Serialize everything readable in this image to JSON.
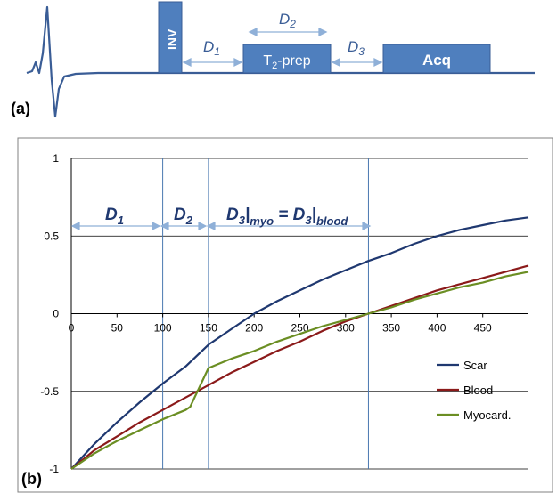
{
  "panel_a": {
    "label": "(a)",
    "blocks": {
      "inv": "INV",
      "t2prep_base": "T",
      "t2prep_sub": "2",
      "t2prep_rest": "-prep",
      "acq": "Acq"
    },
    "durations": {
      "d1_base": "D",
      "d1_sub": "1",
      "d2_base": "D",
      "d2_sub": "2",
      "d3_base": "D",
      "d3_sub": "3"
    },
    "colors": {
      "block": "#4f7fbe",
      "line": "#3a5d96",
      "arrow": "#8fb0d8"
    }
  },
  "panel_b": {
    "label": "(b)",
    "annotations": {
      "d1_base": "D",
      "d1_sub": "1",
      "d2_base": "D",
      "d2_sub": "2",
      "d3_eq_a": "D",
      "d3_eq_a_sub": "3",
      "d3_eq_bar1": "|",
      "d3_eq_myo": "myo",
      "d3_eq_mid": " = D",
      "d3_eq_b_sub": "3",
      "d3_eq_bar2": "|",
      "d3_eq_blood": "blood"
    },
    "vertical_markers": [
      100,
      150,
      325
    ]
  },
  "chart_data": {
    "type": "line",
    "title": "",
    "xlabel": "",
    "ylabel": "",
    "xlim": [
      0,
      500
    ],
    "ylim": [
      -1,
      1
    ],
    "xticks": [
      0,
      50,
      100,
      150,
      200,
      250,
      300,
      350,
      400,
      450
    ],
    "xtick_labels": [
      "0",
      "50",
      "100",
      "150",
      "200",
      "250",
      "300",
      "350",
      "400",
      "450"
    ],
    "yticks": [
      -1,
      -0.5,
      0,
      0.5,
      1
    ],
    "ytick_labels": [
      "-1",
      "-0.5",
      "0",
      "0.5",
      "1"
    ],
    "grid": "horizontal",
    "legend": "bottom-right",
    "series": [
      {
        "name": "Scar",
        "color": "#1f3870",
        "x": [
          0,
          25,
          50,
          75,
          100,
          125,
          150,
          175,
          200,
          225,
          250,
          275,
          300,
          325,
          350,
          375,
          400,
          425,
          450,
          475,
          500
        ],
        "y": [
          -1,
          -0.84,
          -0.7,
          -0.57,
          -0.45,
          -0.34,
          -0.2,
          -0.1,
          0.0,
          0.08,
          0.15,
          0.22,
          0.28,
          0.34,
          0.39,
          0.45,
          0.5,
          0.54,
          0.57,
          0.6,
          0.62
        ]
      },
      {
        "name": "Blood",
        "color": "#8b1a1a",
        "x": [
          0,
          25,
          50,
          75,
          100,
          125,
          150,
          175,
          200,
          225,
          250,
          275,
          300,
          325,
          350,
          375,
          400,
          425,
          450,
          475,
          500
        ],
        "y": [
          -1,
          -0.88,
          -0.79,
          -0.7,
          -0.62,
          -0.54,
          -0.46,
          -0.38,
          -0.31,
          -0.24,
          -0.18,
          -0.11,
          -0.05,
          0.0,
          0.05,
          0.1,
          0.15,
          0.19,
          0.23,
          0.27,
          0.31
        ]
      },
      {
        "name": "Myocard.",
        "color": "#6b8e23",
        "x": [
          0,
          25,
          50,
          75,
          100,
          125,
          130,
          150,
          175,
          200,
          225,
          250,
          275,
          300,
          325,
          350,
          375,
          400,
          425,
          450,
          475,
          500
        ],
        "y": [
          -1,
          -0.9,
          -0.82,
          -0.75,
          -0.68,
          -0.62,
          -0.6,
          -0.35,
          -0.29,
          -0.24,
          -0.18,
          -0.13,
          -0.08,
          -0.04,
          0.0,
          0.04,
          0.09,
          0.13,
          0.17,
          0.2,
          0.24,
          0.27
        ]
      }
    ]
  }
}
